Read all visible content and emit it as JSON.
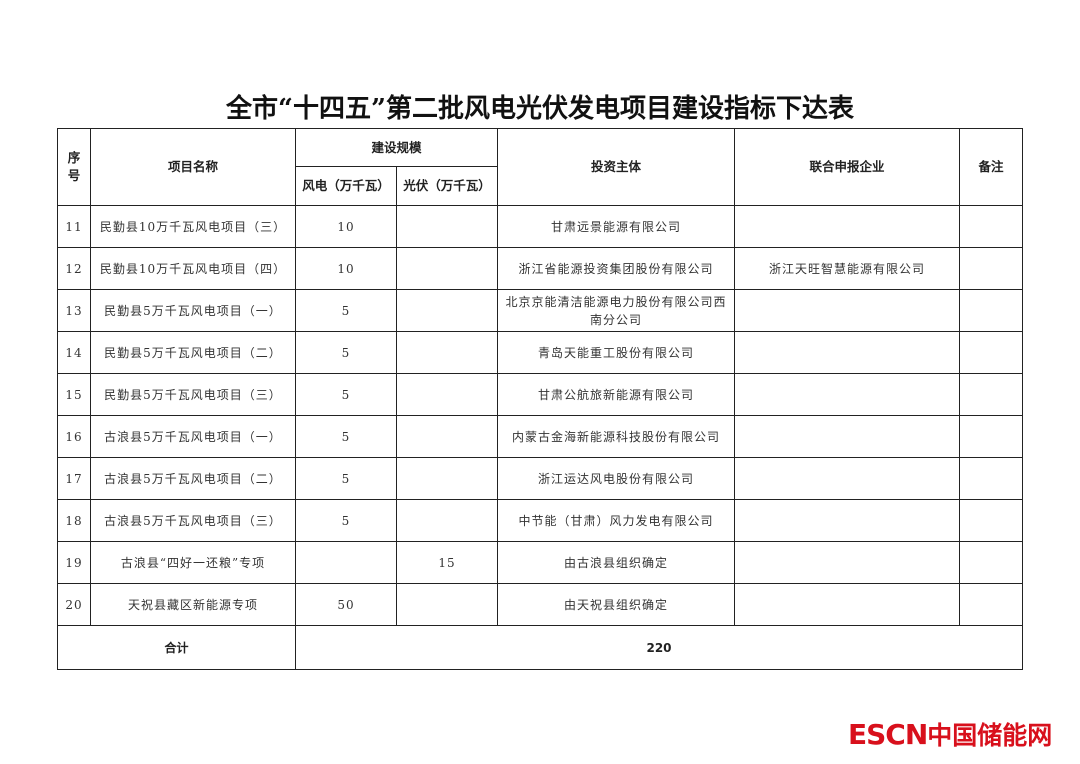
{
  "title": "全市“十四五”第二批风电光伏发电项目建设指标下达表",
  "headers": {
    "no": "序号",
    "name": "项目名称",
    "scale": "建设规模",
    "wind": "风电（万千瓦）",
    "solar": "光伏（万千瓦）",
    "investor": "投资主体",
    "partner": "联合申报企业",
    "remark": "备注"
  },
  "rows": [
    {
      "no": "11",
      "name": "民勤县10万千瓦风电项目（三）",
      "wind": "10",
      "solar": "",
      "investor": "甘肃远景能源有限公司",
      "partner": "",
      "remark": ""
    },
    {
      "no": "12",
      "name": "民勤县10万千瓦风电项目（四）",
      "wind": "10",
      "solar": "",
      "investor": "浙江省能源投资集团股份有限公司",
      "partner": "浙江天旺智慧能源有限公司",
      "remark": ""
    },
    {
      "no": "13",
      "name": "民勤县5万千瓦风电项目（一）",
      "wind": "5",
      "solar": "",
      "investor": "北京京能清洁能源电力股份有限公司西南分公司",
      "partner": "",
      "remark": ""
    },
    {
      "no": "14",
      "name": "民勤县5万千瓦风电项目（二）",
      "wind": "5",
      "solar": "",
      "investor": "青岛天能重工股份有限公司",
      "partner": "",
      "remark": ""
    },
    {
      "no": "15",
      "name": "民勤县5万千瓦风电项目（三）",
      "wind": "5",
      "solar": "",
      "investor": "甘肃公航旅新能源有限公司",
      "partner": "",
      "remark": ""
    },
    {
      "no": "16",
      "name": "古浪县5万千瓦风电项目（一）",
      "wind": "5",
      "solar": "",
      "investor": "内蒙古金海新能源科技股份有限公司",
      "partner": "",
      "remark": ""
    },
    {
      "no": "17",
      "name": "古浪县5万千瓦风电项目（二）",
      "wind": "5",
      "solar": "",
      "investor": "浙江运达风电股份有限公司",
      "partner": "",
      "remark": ""
    },
    {
      "no": "18",
      "name": "古浪县5万千瓦风电项目（三）",
      "wind": "5",
      "solar": "",
      "investor": "中节能（甘肃）风力发电有限公司",
      "partner": "",
      "remark": ""
    },
    {
      "no": "19",
      "name": "古浪县“四好一还粮”专项",
      "wind": "",
      "solar": "15",
      "investor": "由古浪县组织确定",
      "partner": "",
      "remark": ""
    },
    {
      "no": "20",
      "name": "天祝县藏区新能源专项",
      "wind": "50",
      "solar": "",
      "investor": "由天祝县组织确定",
      "partner": "",
      "remark": ""
    }
  ],
  "total": {
    "label": "合计",
    "value": "220"
  },
  "watermark": {
    "text": "ESCN",
    "text_cn": "中国储能网",
    "color": "#d8101c"
  }
}
